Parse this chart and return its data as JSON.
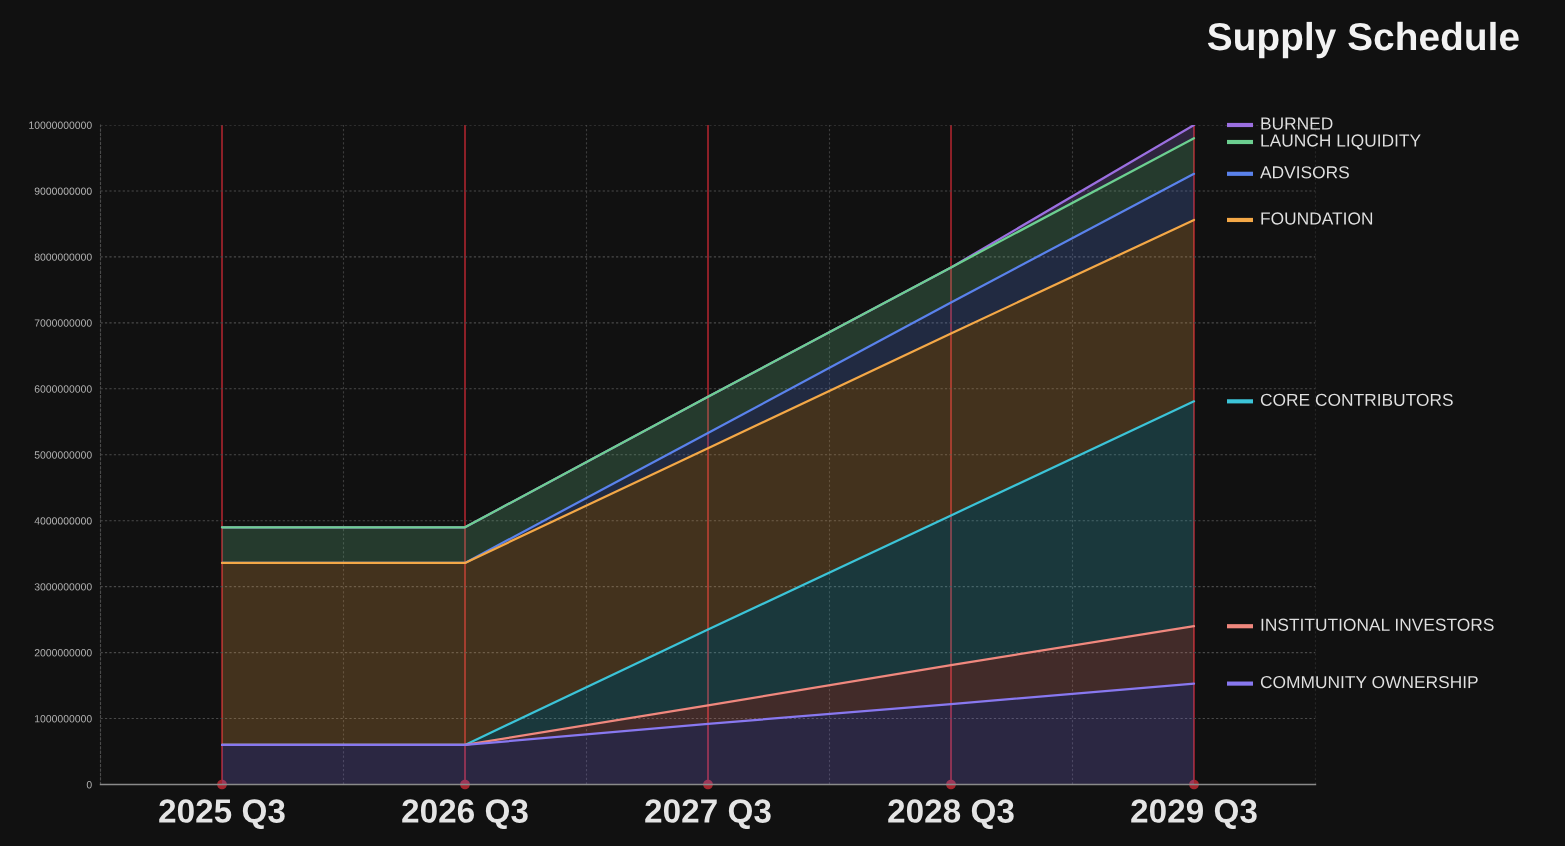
{
  "chart_data": {
    "type": "area",
    "stacked": true,
    "title": "Supply Schedule",
    "categories": [
      "2025 Q3",
      "2026 Q3",
      "2027 Q3",
      "2028 Q3",
      "2029 Q3"
    ],
    "series": [
      {
        "name": "COMMUNITY OWNERSHIP",
        "color": "#8878f0",
        "values": [
          600000000,
          600000000,
          920000000,
          1220000000,
          1530000000
        ]
      },
      {
        "name": "INSTITUTIONAL INVESTORS",
        "color": "#f0887e",
        "values": [
          0,
          0,
          280000000,
          590000000,
          870000000
        ]
      },
      {
        "name": "CORE CONTRIBUTORS",
        "color": "#3cc4d8",
        "values": [
          0,
          0,
          1150000000,
          2270000000,
          3410000000
        ]
      },
      {
        "name": "FOUNDATION",
        "color": "#f4a847",
        "values": [
          2760000000,
          2760000000,
          2750000000,
          2760000000,
          2750000000
        ]
      },
      {
        "name": "ADVISORS",
        "color": "#5a82ec",
        "values": [
          0,
          0,
          230000000,
          470000000,
          700000000
        ]
      },
      {
        "name": "LAUNCH LIQUIDITY",
        "color": "#6ccf90",
        "values": [
          540000000,
          540000000,
          550000000,
          530000000,
          540000000
        ]
      },
      {
        "name": "BURNED",
        "color": "#9b6fe0",
        "values": [
          0,
          0,
          0,
          0,
          200000000
        ]
      }
    ],
    "ylim": [
      0,
      10000000000
    ],
    "yticks": [
      0,
      1000000000,
      2000000000,
      3000000000,
      4000000000,
      5000000000,
      6000000000,
      7000000000,
      8000000000,
      9000000000,
      10000000000
    ],
    "grid": true,
    "legend": "right"
  }
}
